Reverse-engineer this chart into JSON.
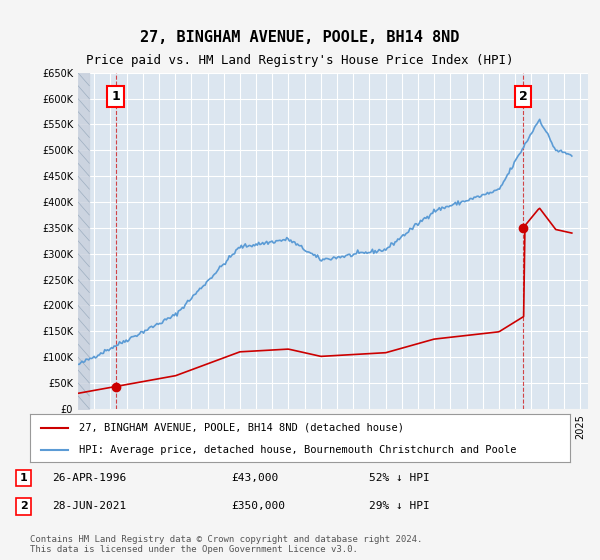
{
  "title": "27, BINGHAM AVENUE, POOLE, BH14 8ND",
  "subtitle": "Price paid vs. HM Land Registry's House Price Index (HPI)",
  "sale1_date": "26-APR-1996",
  "sale1_price": 43000,
  "sale1_label": "1",
  "sale1_year": 1996.32,
  "sale2_date": "28-JUN-2021",
  "sale2_price": 350000,
  "sale2_label": "2",
  "sale2_year": 2021.49,
  "legend_line1": "27, BINGHAM AVENUE, POOLE, BH14 8ND (detached house)",
  "legend_line2": "HPI: Average price, detached house, Bournemouth Christchurch and Poole",
  "table_row1": "1    26-APR-1996         £43,000        52% ↓ HPI",
  "table_row2": "2    28-JUN-2021         £350,000      29% ↓ HPI",
  "footer": "Contains HM Land Registry data © Crown copyright and database right 2024.\nThis data is licensed under the Open Government Licence v3.0.",
  "bg_color": "#dce6f0",
  "plot_bg": "#dce6f0",
  "red_color": "#cc0000",
  "blue_color": "#5b9bd5",
  "grid_color": "#ffffff",
  "hatch_color": "#c0c8d8",
  "ylim_max": 650000,
  "xmin": 1994,
  "xmax": 2025.5
}
